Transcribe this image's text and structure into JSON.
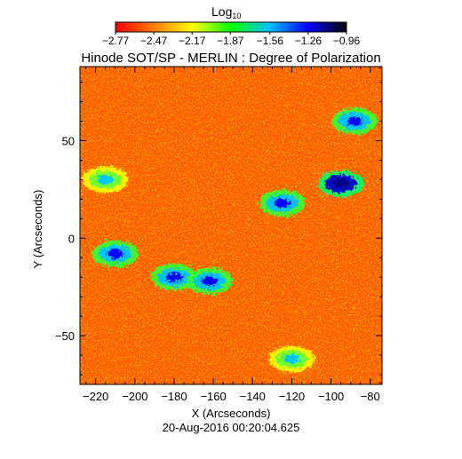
{
  "chart_data": {
    "type": "heatmap",
    "title": "Hinode SOT/SP - MERLIN : Degree of Polarization",
    "subtitle": "20-Aug-2016 00:20:04.625",
    "xlabel": "X (Arcseconds)",
    "ylabel": "Y (Arcseconds)",
    "xlim": [
      -228,
      -74
    ],
    "ylim": [
      -75,
      88
    ],
    "x_ticks": [
      -220,
      -200,
      -180,
      -160,
      -140,
      -120,
      -100,
      -80
    ],
    "y_ticks": [
      -50,
      0,
      50
    ],
    "colorbar": {
      "label": "Log",
      "label_sub": "10",
      "range": [
        -2.77,
        -0.96
      ],
      "ticks": [
        -2.77,
        -2.47,
        -2.17,
        -1.87,
        -1.56,
        -1.26,
        -0.96
      ],
      "colormap": [
        "#ff0000",
        "#ff7f00",
        "#ffff00",
        "#00ff00",
        "#00bfff",
        "#0000ff",
        "#000000"
      ]
    },
    "high_polarization_regions": [
      {
        "x": -210,
        "y": -8,
        "level": -1.4
      },
      {
        "x": -180,
        "y": -20,
        "level": -1.6
      },
      {
        "x": -162,
        "y": -22,
        "level": -1.5
      },
      {
        "x": -125,
        "y": 18,
        "level": -1.6
      },
      {
        "x": -95,
        "y": 28,
        "level": -1.3
      },
      {
        "x": -88,
        "y": 60,
        "level": -1.4
      },
      {
        "x": -120,
        "y": -62,
        "level": -1.9
      },
      {
        "x": -215,
        "y": 30,
        "level": -2.0
      }
    ]
  }
}
